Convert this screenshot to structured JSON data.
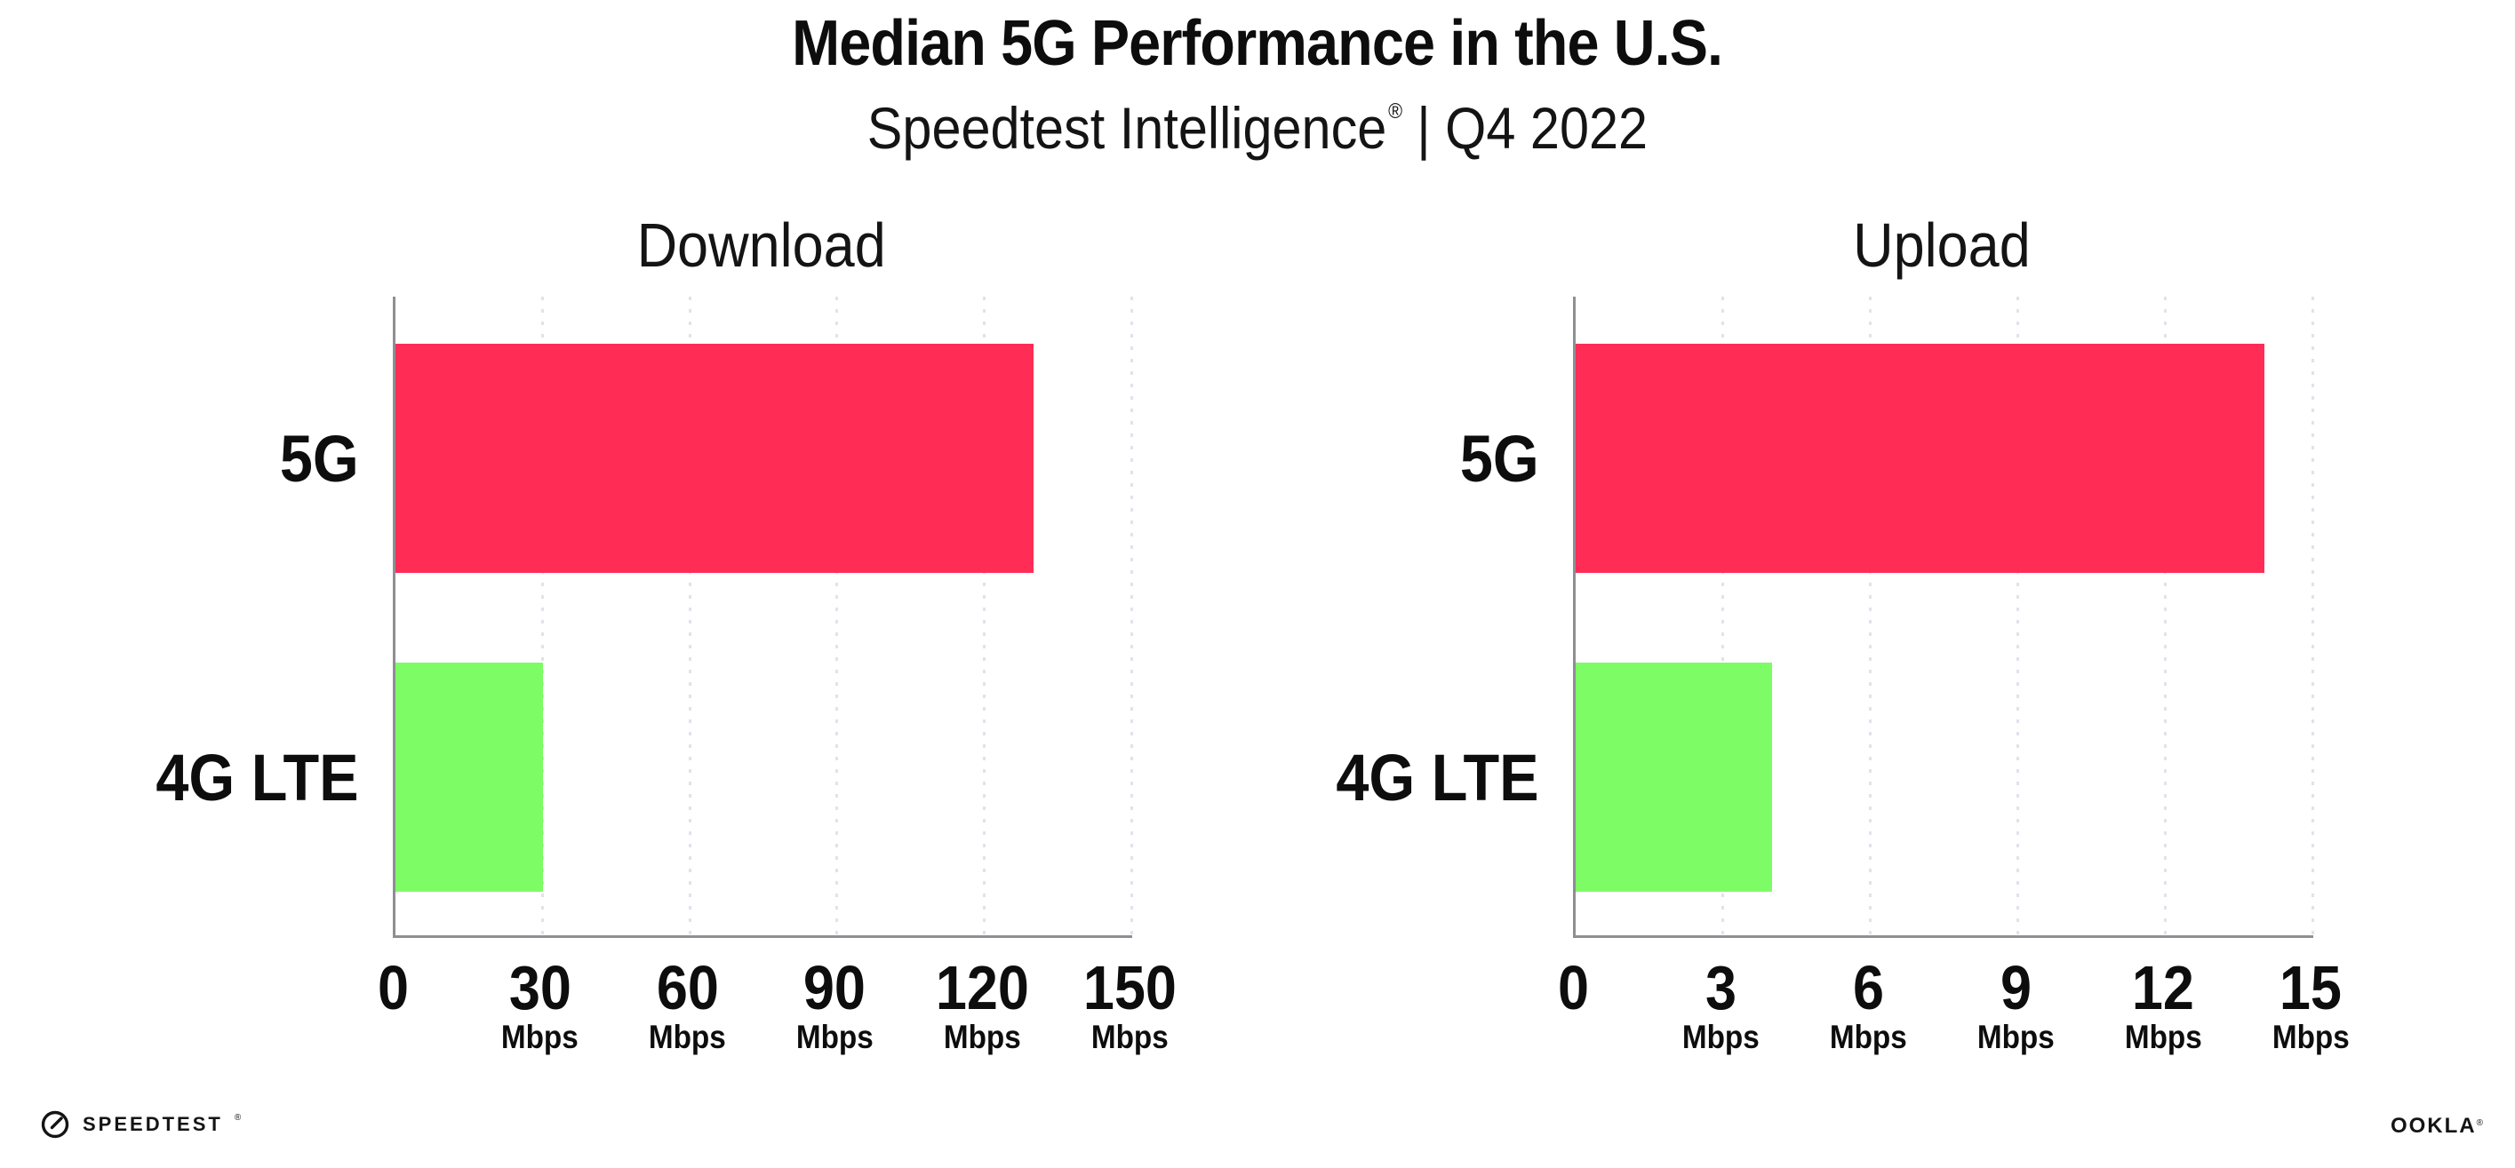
{
  "header": {
    "title": "Median 5G Performance in the U.S.",
    "subtitle_brand": "Speedtest Intelligence",
    "subtitle_mark": "®",
    "subtitle_rest": "| Q4 2022"
  },
  "chart_data": [
    {
      "type": "bar",
      "orientation": "horizontal",
      "title": "Download",
      "categories": [
        "5G",
        "4G LTE"
      ],
      "values": [
        130,
        30
      ],
      "unit": "Mbps",
      "xlabel": "",
      "ylabel": "",
      "xlim": [
        0,
        150
      ],
      "xticks": [
        0,
        30,
        60,
        90,
        120,
        150
      ],
      "bar_colors": [
        "#FF2D55",
        "#7DFC66"
      ],
      "grid": "vertical-dotted",
      "legend": "none"
    },
    {
      "type": "bar",
      "orientation": "horizontal",
      "title": "Upload",
      "categories": [
        "5G",
        "4G LTE"
      ],
      "values": [
        14,
        4
      ],
      "unit": "Mbps",
      "xlabel": "",
      "ylabel": "",
      "xlim": [
        0,
        15
      ],
      "xticks": [
        0,
        3,
        6,
        9,
        12,
        15
      ],
      "bar_colors": [
        "#FF2D55",
        "#7DFC66"
      ],
      "grid": "vertical-dotted",
      "legend": "none"
    }
  ],
  "footer": {
    "speedtest_label": "SPEEDTEST",
    "speedtest_mark": "®",
    "ookla_label": "OOKLA",
    "ookla_mark": "®"
  },
  "colors": {
    "bar_5g": "#FF2D55",
    "bar_4g_lte": "#7DFC66",
    "axis": "#8E8E93",
    "gridline": "#E2E2EC",
    "text": "#111111",
    "background": "#FFFFFF"
  }
}
